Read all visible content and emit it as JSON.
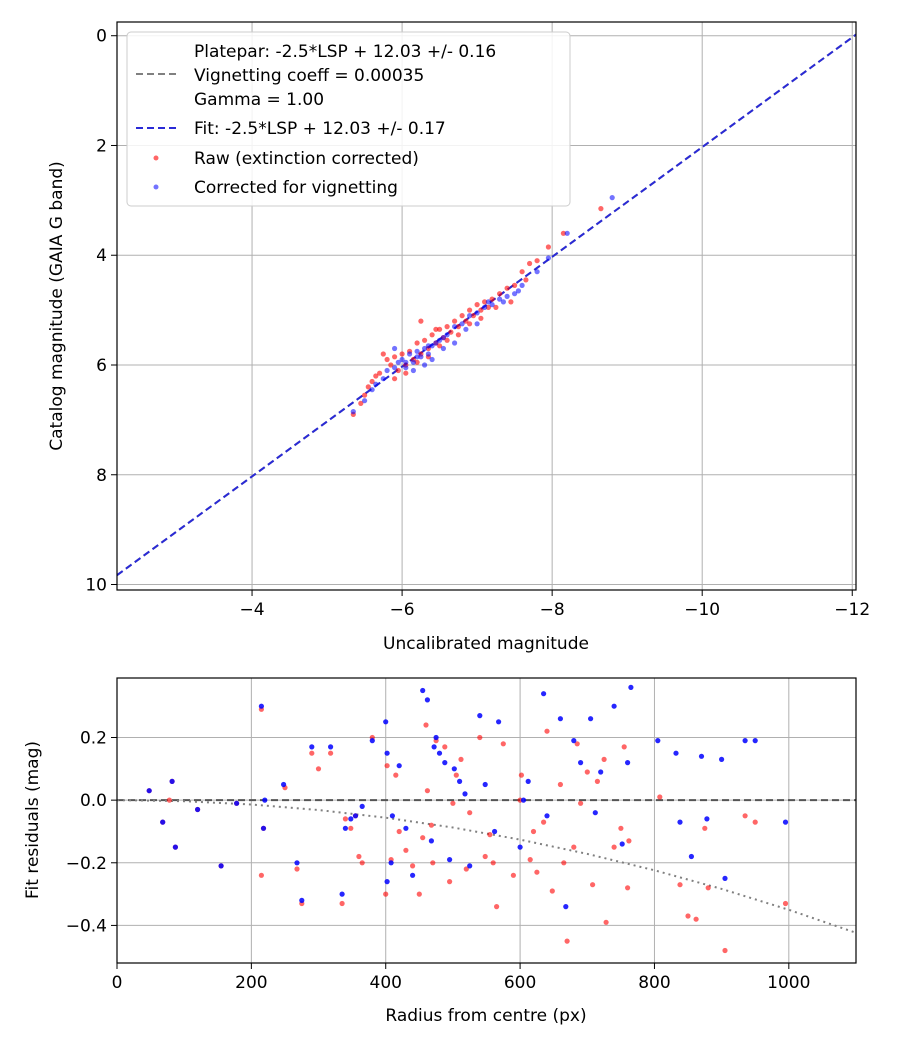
{
  "chart_data": [
    {
      "type": "scatter",
      "xlabel": "Uncalibrated magnitude",
      "ylabel": "Catalog magnitude (GAIA G band)",
      "xlim": [
        -2.2,
        -12.05
      ],
      "ylim": [
        10.1,
        -0.25
      ],
      "x_inverted": true,
      "y_inverted": true,
      "grid": true,
      "legend_position": "top-left",
      "xticks": [
        -4,
        -6,
        -8,
        -10,
        -12
      ],
      "xtick_labels": [
        "−4",
        "−6",
        "−8",
        "−10",
        "−12"
      ],
      "yticks": [
        0,
        2,
        4,
        6,
        8,
        10
      ],
      "ytick_labels": [
        "0",
        "2",
        "4",
        "6",
        "8",
        "10"
      ],
      "lines": [
        {
          "name": "Platepar: -2.5*LSP + 12.03 +/- 0.16\nVignetting coeff = 0.00035\nGamma = 1.00",
          "x": [
            -2.2,
            -12.05
          ],
          "y": [
            9.83,
            -0.02
          ],
          "color": "#808080",
          "dash": "dashed"
        },
        {
          "name": "Fit: -2.5*LSP + 12.03 +/- 0.17",
          "x": [
            -2.2,
            -12.05
          ],
          "y": [
            9.83,
            -0.02
          ],
          "color": "#2a2ad6",
          "dash": "dashed"
        }
      ],
      "series": [
        {
          "name": "Raw (extinction corrected)",
          "color": "#ff0000",
          "opacity": 0.6,
          "x": [
            -5.35,
            -5.45,
            -5.5,
            -5.55,
            -5.6,
            -5.65,
            -5.7,
            -5.8,
            -5.85,
            -5.9,
            -5.95,
            -6.0,
            -6.05,
            -6.1,
            -6.15,
            -6.2,
            -6.25,
            -6.3,
            -6.35,
            -6.4,
            -6.45,
            -6.5,
            -6.55,
            -6.6,
            -6.65,
            -6.7,
            -6.75,
            -6.8,
            -6.85,
            -6.9,
            -6.95,
            -7.0,
            -7.05,
            -7.1,
            -7.15,
            -7.2,
            -7.3,
            -7.4,
            -7.5,
            -7.6,
            -7.7,
            -7.8,
            -7.95,
            -8.15,
            -8.65,
            -5.75,
            -5.9,
            -6.05,
            -6.2,
            -6.35,
            -6.5,
            -6.6,
            -6.75,
            -6.9,
            -7.05,
            -7.25,
            -7.45,
            -7.65,
            -6.25,
            -6.45
          ],
          "y": [
            6.9,
            6.7,
            6.55,
            6.4,
            6.3,
            6.2,
            6.15,
            5.9,
            6.0,
            5.85,
            6.1,
            5.8,
            6.0,
            5.75,
            5.9,
            5.6,
            5.8,
            5.55,
            5.7,
            5.45,
            5.6,
            5.35,
            5.5,
            5.3,
            5.4,
            5.2,
            5.3,
            5.1,
            5.2,
            5.0,
            5.1,
            4.9,
            5.0,
            4.85,
            4.95,
            4.8,
            4.7,
            4.6,
            4.55,
            4.3,
            4.15,
            4.1,
            3.85,
            3.6,
            3.15,
            5.8,
            6.25,
            6.15,
            5.95,
            5.85,
            5.65,
            5.55,
            5.45,
            5.25,
            5.15,
            4.95,
            4.85,
            4.45,
            5.2,
            5.35
          ]
        },
        {
          "name": "Corrected for vignetting",
          "color": "#0000ff",
          "opacity": 0.55,
          "x": [
            -5.35,
            -5.5,
            -5.6,
            -5.65,
            -5.75,
            -5.8,
            -5.9,
            -5.95,
            -6.0,
            -6.05,
            -6.1,
            -6.15,
            -6.2,
            -6.25,
            -6.3,
            -6.35,
            -6.4,
            -6.45,
            -6.5,
            -6.55,
            -6.6,
            -6.7,
            -6.8,
            -6.9,
            -7.0,
            -7.1,
            -7.2,
            -7.3,
            -7.4,
            -7.5,
            -7.6,
            -7.8,
            -7.95,
            -8.2,
            -8.8,
            -5.9,
            -6.05,
            -6.15,
            -6.3,
            -6.4,
            -6.55,
            -6.7,
            -6.85,
            -7.0,
            -7.15,
            -7.35,
            -7.55,
            -6.2,
            -6.35
          ],
          "y": [
            6.85,
            6.65,
            6.45,
            6.35,
            6.25,
            6.1,
            6.05,
            5.95,
            5.9,
            6.05,
            5.8,
            5.95,
            5.75,
            5.85,
            5.7,
            5.8,
            5.65,
            5.6,
            5.55,
            5.5,
            5.45,
            5.3,
            5.25,
            5.1,
            5.05,
            4.95,
            4.9,
            4.8,
            4.75,
            4.7,
            4.55,
            4.3,
            4.05,
            3.6,
            2.95,
            5.7,
            5.95,
            6.1,
            6.0,
            5.9,
            5.7,
            5.6,
            5.35,
            5.25,
            4.85,
            4.85,
            4.65,
            5.85,
            5.65
          ]
        }
      ]
    },
    {
      "type": "scatter",
      "xlabel": "Radius from centre (px)",
      "ylabel": "Fit residuals (mag)",
      "xlim": [
        0,
        1100
      ],
      "ylim": [
        -0.52,
        0.39
      ],
      "grid": true,
      "xticks": [
        0,
        200,
        400,
        600,
        800,
        1000
      ],
      "xtick_labels": [
        "0",
        "200",
        "400",
        "600",
        "800",
        "1000"
      ],
      "yticks": [
        0.2,
        0.0,
        -0.2,
        -0.4
      ],
      "ytick_labels": [
        "0.2",
        "0.0",
        "−0.2",
        "−0.4"
      ],
      "lines": [
        {
          "x": [
            0,
            1100
          ],
          "y": [
            0,
            0
          ],
          "color": "#555555",
          "dash": "dashed"
        },
        {
          "x": [
            0,
            100,
            200,
            300,
            400,
            500,
            600,
            700,
            800,
            900,
            1000,
            1100
          ],
          "y": [
            0,
            -0.0035,
            -0.014,
            -0.0315,
            -0.056,
            -0.0875,
            -0.126,
            -0.1715,
            -0.224,
            -0.2835,
            -0.35,
            -0.4235
          ],
          "color": "#808080",
          "dash": "dotted"
        }
      ],
      "series": [
        {
          "name": "Raw",
          "color": "#ff0000",
          "opacity": 0.6,
          "x": [
            48,
            68,
            78,
            82,
            87,
            120,
            155,
            178,
            215,
            215,
            218,
            250,
            268,
            275,
            290,
            300,
            318,
            335,
            340,
            348,
            355,
            360,
            365,
            380,
            400,
            402,
            408,
            415,
            420,
            430,
            440,
            450,
            455,
            460,
            462,
            468,
            470,
            475,
            488,
            495,
            500,
            505,
            512,
            520,
            525,
            540,
            548,
            555,
            560,
            565,
            575,
            590,
            600,
            602,
            615,
            620,
            625,
            635,
            640,
            648,
            660,
            665,
            670,
            680,
            685,
            690,
            700,
            708,
            715,
            725,
            728,
            740,
            750,
            755,
            760,
            762,
            808,
            838,
            850,
            862,
            875,
            880,
            905,
            935,
            950,
            995
          ],
          "y": [
            0.03,
            -0.07,
            0.0,
            0.06,
            -0.15,
            -0.03,
            -0.21,
            -0.01,
            0.29,
            -0.24,
            -0.09,
            0.04,
            -0.22,
            -0.33,
            0.15,
            0.1,
            0.15,
            -0.33,
            -0.06,
            -0.09,
            -0.05,
            -0.18,
            -0.2,
            0.2,
            -0.3,
            0.11,
            -0.19,
            0.08,
            -0.1,
            -0.16,
            -0.21,
            -0.3,
            -0.12,
            0.24,
            0.03,
            -0.08,
            -0.2,
            0.19,
            0.17,
            -0.26,
            -0.01,
            0.08,
            0.13,
            -0.22,
            -0.04,
            0.2,
            -0.18,
            -0.11,
            -0.2,
            -0.34,
            0.18,
            -0.24,
            0.0,
            0.08,
            -0.19,
            -0.1,
            -0.23,
            -0.07,
            0.22,
            -0.29,
            0.05,
            -0.2,
            -0.45,
            -0.15,
            0.18,
            -0.01,
            0.09,
            -0.27,
            0.06,
            0.13,
            -0.39,
            -0.15,
            -0.09,
            0.17,
            -0.28,
            -0.13,
            0.01,
            -0.27,
            -0.37,
            -0.38,
            -0.09,
            -0.28,
            -0.48,
            -0.05,
            -0.07,
            -0.33
          ]
        },
        {
          "name": "Corrected",
          "color": "#0000ff",
          "opacity": 0.85,
          "x": [
            48,
            68,
            82,
            87,
            120,
            155,
            178,
            215,
            218,
            220,
            248,
            268,
            275,
            290,
            318,
            335,
            340,
            348,
            355,
            365,
            380,
            400,
            402,
            402,
            408,
            410,
            420,
            430,
            440,
            455,
            462,
            468,
            472,
            475,
            480,
            488,
            495,
            502,
            510,
            518,
            525,
            540,
            548,
            562,
            568,
            600,
            605,
            612,
            635,
            640,
            660,
            668,
            680,
            690,
            705,
            712,
            720,
            740,
            752,
            760,
            765,
            805,
            832,
            838,
            855,
            870,
            878,
            900,
            905,
            935,
            950,
            995
          ],
          "y": [
            0.03,
            -0.07,
            0.06,
            -0.15,
            -0.03,
            -0.21,
            -0.01,
            0.3,
            -0.09,
            0.0,
            0.05,
            -0.2,
            -0.32,
            0.17,
            0.17,
            -0.3,
            -0.09,
            -0.06,
            -0.05,
            -0.02,
            0.19,
            0.25,
            0.15,
            -0.26,
            -0.2,
            -0.05,
            0.11,
            -0.09,
            -0.24,
            0.35,
            0.32,
            -0.13,
            0.17,
            0.2,
            0.15,
            0.12,
            -0.19,
            0.1,
            0.06,
            0.02,
            -0.21,
            0.27,
            0.05,
            -0.1,
            0.25,
            -0.15,
            0.0,
            0.06,
            0.34,
            -0.05,
            0.26,
            -0.34,
            0.19,
            0.12,
            0.26,
            -0.04,
            0.09,
            0.3,
            -0.14,
            0.12,
            0.36,
            0.19,
            0.15,
            -0.07,
            -0.18,
            0.14,
            -0.06,
            0.13,
            -0.25,
            0.19,
            0.19,
            -0.07
          ]
        }
      ]
    }
  ]
}
